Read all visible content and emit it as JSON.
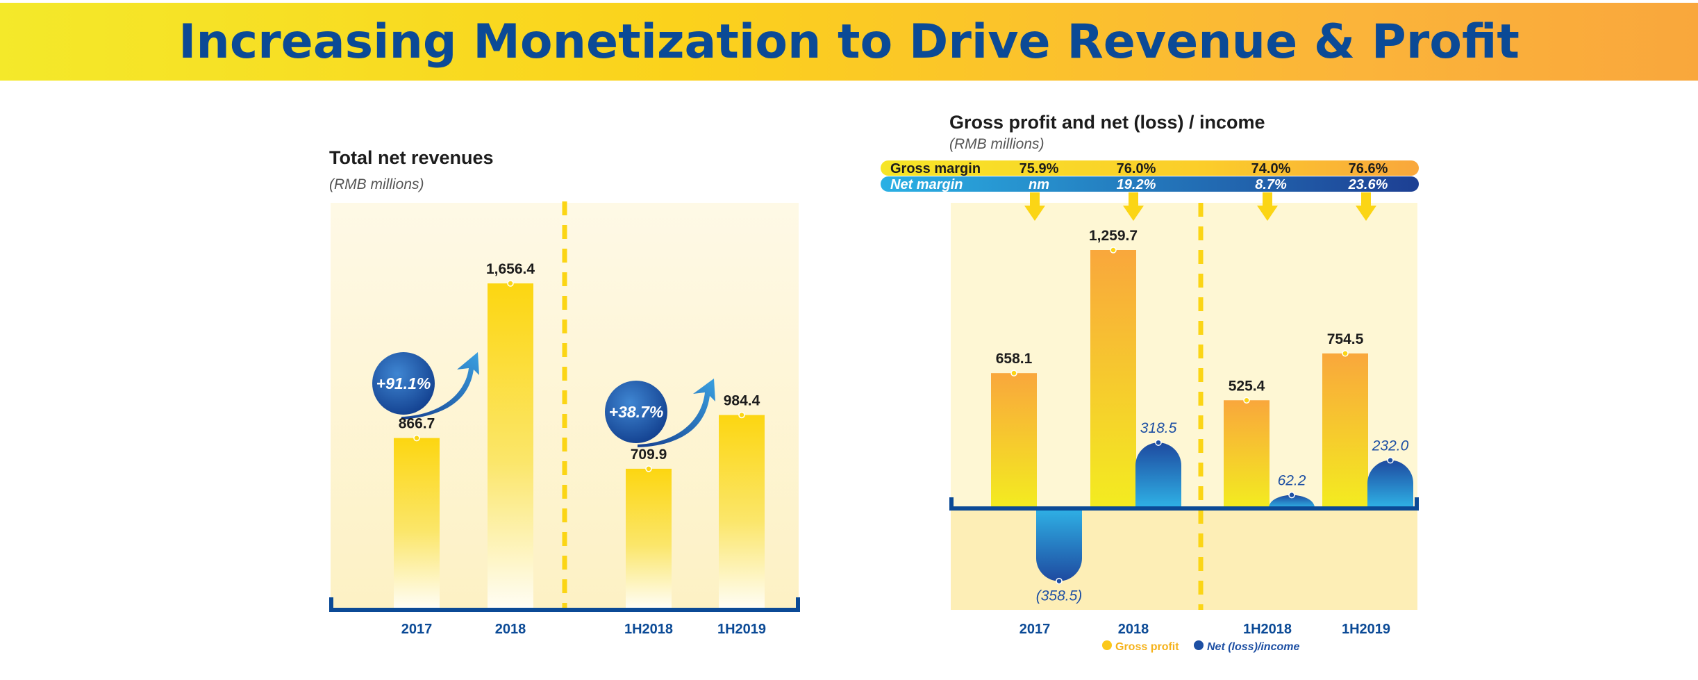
{
  "page_title": "Increasing Monetization to Drive Revenue & Profit",
  "colors": {
    "navy": "#0b4a96",
    "gold": "#fbd515",
    "orange": "#f9a73c",
    "blue_light": "#2aa8e0",
    "blue_dark": "#1d4fa3",
    "panel": "#fdf6dc"
  },
  "chart_data": [
    {
      "type": "bar",
      "title": "Total net revenues",
      "unit": "(RMB millions)",
      "categories": [
        "2017",
        "2018",
        "1H2018",
        "1H2019"
      ],
      "values": [
        866.7,
        1656.4,
        709.9,
        984.4
      ],
      "value_labels": [
        "866.7",
        "1,656.4",
        "709.9",
        "984.4"
      ],
      "ylim": [
        0,
        2000
      ],
      "growth_annotations": [
        {
          "label": "+91.1%",
          "from": "2017",
          "to": "2018"
        },
        {
          "label": "+38.7%",
          "from": "1H2018",
          "to": "1H2019"
        }
      ]
    },
    {
      "type": "bar",
      "title": "Gross profit and net (loss) / income",
      "unit": "(RMB millions)",
      "categories": [
        "2017",
        "2018",
        "1H2018",
        "1H2019"
      ],
      "series": [
        {
          "name": "Gross profit",
          "values": [
            658.1,
            1259.7,
            525.4,
            754.5
          ],
          "value_labels": [
            "658.1",
            "1,259.7",
            "525.4",
            "754.5"
          ]
        },
        {
          "name": "Net (loss)/income",
          "values": [
            -358.5,
            318.5,
            62.2,
            232.0
          ],
          "value_labels": [
            "(358.5)",
            "318.5",
            "62.2",
            "232.0"
          ]
        }
      ],
      "ylim": [
        -520,
        1500
      ],
      "margins": {
        "gross_label": "Gross margin",
        "gross_values": [
          "75.9%",
          "76.0%",
          "74.0%",
          "76.6%"
        ],
        "net_label": "Net margin",
        "net_values": [
          "nm",
          "19.2%",
          "8.7%",
          "23.6%"
        ]
      },
      "legend": [
        "Gross profit",
        "Net (loss)/income"
      ]
    }
  ]
}
